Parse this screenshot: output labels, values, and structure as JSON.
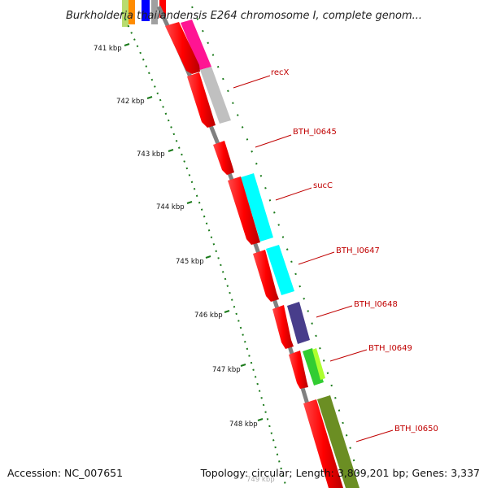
{
  "title": "Burkholderia thailandensis E264 chromosome I, complete genom...",
  "footer": {
    "accession": "Accession: NC_007651",
    "summary": "Topology: circular; Length: 3,809,201 bp; Genes: 3,337"
  },
  "colors": {
    "backbone": "#808080",
    "cds": "#ff0000",
    "tick": "#1a7a1a",
    "label": "#c00000"
  },
  "ticks": [
    {
      "label": "741 kbp"
    },
    {
      "label": "742 kbp"
    },
    {
      "label": "743 kbp"
    },
    {
      "label": "744 kbp"
    },
    {
      "label": "745 kbp"
    },
    {
      "label": "746 kbp"
    },
    {
      "label": "747 kbp"
    },
    {
      "label": "748 kbp"
    },
    {
      "label": "749 kbp"
    }
  ],
  "features": [
    {
      "name": "recX",
      "track2_color": "#ff1493"
    },
    {
      "name": "BTH_I0645",
      "track2_color": "#c0c0c0"
    },
    {
      "name": "",
      "track2_color": ""
    },
    {
      "name": "sucC",
      "track2_color": "#00ffff"
    },
    {
      "name": "BTH_I0647",
      "track2_color": "#00ffff"
    },
    {
      "name": "BTH_I0648",
      "track2_color": "#483d8b"
    },
    {
      "name": "BTH_I0649",
      "track2_color": "#32cd32"
    },
    {
      "name": "BTH_I0650",
      "track2_color": "#6b8e23"
    },
    {
      "name": "",
      "track2_color": "#6b8e23"
    }
  ]
}
